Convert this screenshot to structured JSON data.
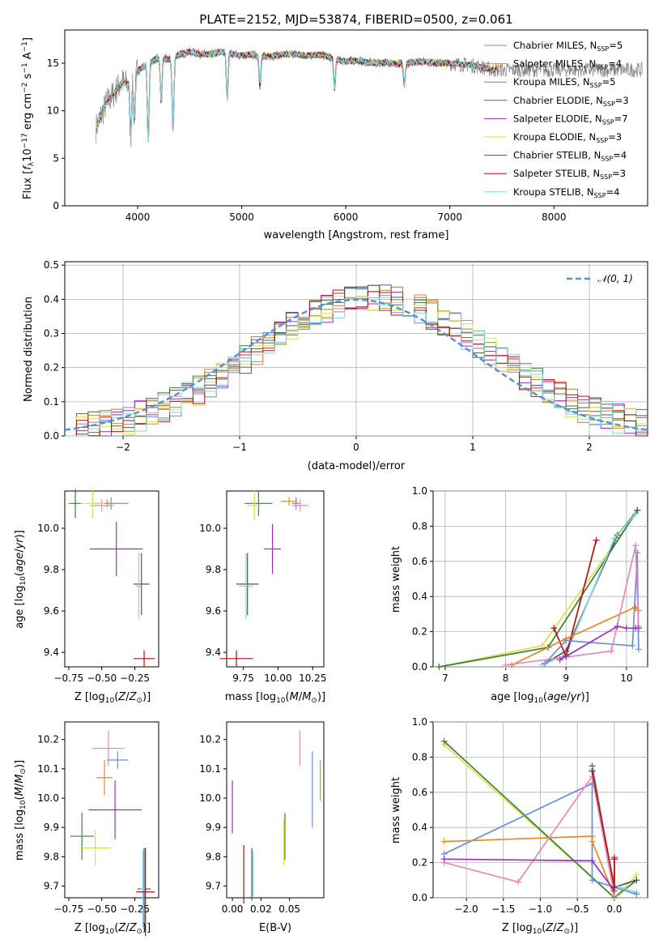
{
  "chart_data": [
    {
      "type": "line",
      "title": "PLATE=2152, MJD=53874, FIBERID=0500, z=0.061",
      "xlabel": "wavelength [Angstrom, rest frame]",
      "ylabel": "Flux [f_λ 10^-17 erg cm^-2 s^-1 A^-1]",
      "xlim": [
        3300,
        8900
      ],
      "ylim": [
        0,
        18.5
      ],
      "xticks": [
        4000,
        5000,
        6000,
        7000,
        8000
      ],
      "yticks": [
        0,
        5,
        10,
        15
      ],
      "legend_position": "top-right",
      "legend": [
        {
          "label": "Chabrier MILES, N",
          "sub": "SSP",
          "n": "=5",
          "color": "#6a8fd8"
        },
        {
          "label": "Salpeter MILES, N",
          "sub": "SSP",
          "n": "=4",
          "color": "#e08a2c"
        },
        {
          "label": "Kroupa MILES, N",
          "sub": "SSP",
          "n": "=5",
          "color": "#9a8a2a"
        },
        {
          "label": "Chabrier ELODIE, N",
          "sub": "SSP",
          "n": "=3",
          "color": "#3f7f3f"
        },
        {
          "label": "Salpeter ELODIE, N",
          "sub": "SSP",
          "n": "=7",
          "color": "#9a2fb5"
        },
        {
          "label": "Kroupa ELODIE, N",
          "sub": "SSP",
          "n": "=3",
          "color": "#d9e14a"
        },
        {
          "label": "Chabrier STELIB, N",
          "sub": "SSP",
          "n": "=4",
          "color": "#555555"
        },
        {
          "label": "Salpeter STELIB, N",
          "sub": "SSP",
          "n": "=3",
          "color": "#b01010"
        },
        {
          "label": "Kroupa STELIB, N",
          "sub": "SSP",
          "n": "=4",
          "color": "#7fd6e0"
        }
      ],
      "data_color": "#808080",
      "model_color": "#7fd6e0",
      "spectrum_x": [
        3600,
        3650,
        3700,
        3750,
        3800,
        3850,
        3900,
        3950,
        4000,
        4050,
        4100,
        4150,
        4200,
        4300,
        4400,
        4500,
        4600,
        4700,
        4800,
        4900,
        5000,
        5100,
        5200,
        5300,
        5400,
        5500,
        5600,
        5700,
        5800,
        5900,
        6000,
        6100,
        6200,
        6300,
        6400,
        6500,
        6600,
        6700,
        6800,
        6900,
        7000,
        7100,
        7200,
        7300,
        7400
      ],
      "spectrum_y": [
        8.2,
        9.5,
        10.8,
        11.5,
        12.3,
        13.0,
        12.8,
        13.6,
        14.2,
        14.6,
        15.0,
        15.3,
        15.5,
        15.4,
        15.9,
        16.2,
        16.0,
        15.9,
        16.2,
        16.0,
        15.8,
        15.9,
        15.7,
        15.8,
        15.9,
        16.0,
        15.8,
        15.9,
        15.8,
        15.4,
        15.2,
        15.3,
        15.1,
        15.0,
        15.1,
        14.9,
        15.0,
        15.2,
        15.1,
        15.0,
        15.0,
        14.9,
        14.8,
        14.6,
        14.3
      ]
    },
    {
      "type": "histogram",
      "xlabel": "(data-model)/error",
      "ylabel": "Normed distribution",
      "xlim": [
        -2.5,
        2.5
      ],
      "ylim": [
        0,
        0.51
      ],
      "xticks": [
        -2,
        -1,
        0,
        1,
        2
      ],
      "yticks": [
        0.0,
        0.1,
        0.2,
        0.3,
        0.4,
        0.5
      ],
      "grid": true,
      "legend_position": "top-right",
      "legend": [
        {
          "label": "𝒩(0, 1)",
          "color": "#5b8fd6",
          "style": "dashed"
        }
      ],
      "bin_width": 0.1
    },
    {
      "type": "errorbar",
      "xlabel": "Z [log10(Z/Z⊙)]",
      "ylabel": "age  [log10(age/yr)]",
      "xlim": [
        -0.78,
        -0.07
      ],
      "ylim": [
        9.33,
        10.18
      ],
      "xticks": [
        -0.75,
        -0.5,
        -0.25
      ],
      "yticks": [
        9.4,
        9.6,
        9.8,
        10.0
      ],
      "points": [
        {
          "color": "#6a8fd8",
          "x": -0.43,
          "y": 10.12,
          "xe": 0.13,
          "ye": 0.03
        },
        {
          "color": "#e08a2c",
          "x": -0.46,
          "y": 10.12,
          "xe": 0.05,
          "ye": 0.02
        },
        {
          "color": "#e68ab5",
          "x": -0.5,
          "y": 10.11,
          "xe": 0.09,
          "ye": 0.03
        },
        {
          "color": "#3f7f3f",
          "x": -0.7,
          "y": 10.12,
          "xe": 0.05,
          "ye": 0.07
        },
        {
          "color": "#d9e14a",
          "x": -0.57,
          "y": 10.12,
          "xe": 0.09,
          "ye": 0.07
        },
        {
          "color": "#9a2fb5",
          "x": -0.39,
          "y": 9.9,
          "xe": 0.2,
          "ye": 0.13
        },
        {
          "color": "#555555",
          "x": -0.2,
          "y": 9.73,
          "xe": 0.06,
          "ye": 0.15
        },
        {
          "color": "#7fd6e0",
          "x": -0.22,
          "y": 9.72,
          "xe": 0.02,
          "ye": 0.16
        },
        {
          "color": "#b01010",
          "x": -0.18,
          "y": 9.37,
          "xe": 0.08,
          "ye": 0.04
        }
      ]
    },
    {
      "type": "errorbar",
      "xlabel": "mass [log10(M/M⊙)]",
      "ylabel": "",
      "xlim": [
        9.63,
        10.33
      ],
      "ylim": [
        9.33,
        10.18
      ],
      "xticks": [
        9.75,
        10.0,
        10.25
      ],
      "yticks": [
        9.4,
        9.6,
        9.8,
        10.0
      ],
      "points": [
        {
          "color": "#6a8fd8",
          "x": 10.13,
          "y": 10.12,
          "xe": 0.03,
          "ye": 0.03
        },
        {
          "color": "#e08a2c",
          "x": 10.08,
          "y": 10.13,
          "xe": 0.06,
          "ye": 0.02
        },
        {
          "color": "#e68ab5",
          "x": 10.16,
          "y": 10.11,
          "xe": 0.06,
          "ye": 0.03
        },
        {
          "color": "#3f7f3f",
          "x": 9.86,
          "y": 10.12,
          "xe": 0.1,
          "ye": 0.06
        },
        {
          "color": "#d9e14a",
          "x": 9.83,
          "y": 10.11,
          "xe": 0.05,
          "ye": 0.07
        },
        {
          "color": "#9a2fb5",
          "x": 9.96,
          "y": 9.9,
          "xe": 0.06,
          "ye": 0.12
        },
        {
          "color": "#555555",
          "x": 9.78,
          "y": 9.73,
          "xe": 0.08,
          "ye": 0.15
        },
        {
          "color": "#7fd6e0",
          "x": 9.77,
          "y": 9.72,
          "xe": 0.05,
          "ye": 0.16
        },
        {
          "color": "#b01010",
          "x": 9.7,
          "y": 9.37,
          "xe": 0.12,
          "ye": 0.04
        }
      ]
    },
    {
      "type": "line",
      "xlabel": "age  [log10(age/yr)]",
      "ylabel": "mass weight",
      "xlim": [
        6.8,
        10.35
      ],
      "ylim": [
        0,
        1.0
      ],
      "xticks": [
        7,
        8,
        9,
        10
      ],
      "yticks": [
        0.0,
        0.2,
        0.4,
        0.6,
        0.8,
        1.0
      ],
      "grid": true,
      "series": [
        {
          "color": "#d9e14a",
          "x": [
            6.9,
            8.6,
            10.15
          ],
          "y": [
            0.0,
            0.12,
            0.87
          ]
        },
        {
          "color": "#3f7f3f",
          "x": [
            6.9,
            8.7,
            10.18
          ],
          "y": [
            0.0,
            0.11,
            0.89
          ]
        },
        {
          "color": "#555555",
          "x": [
            8.65,
            9.0,
            9.85,
            10.18
          ],
          "y": [
            0.02,
            0.09,
            0.75,
            0.89
          ]
        },
        {
          "color": "#7fd6e0",
          "x": [
            8.6,
            9.0,
            9.8,
            10.15
          ],
          "y": [
            0.01,
            0.07,
            0.73,
            0.87
          ]
        },
        {
          "color": "#b01010",
          "x": [
            8.8,
            9.0,
            9.5
          ],
          "y": [
            0.22,
            0.06,
            0.72
          ]
        },
        {
          "color": "#6a8fd8",
          "x": [
            8.65,
            9.0,
            10.1,
            10.18,
            10.2
          ],
          "y": [
            0.02,
            0.15,
            0.12,
            0.65,
            0.1
          ]
        },
        {
          "color": "#e08a2c",
          "x": [
            8.1,
            9.0,
            10.15,
            10.2
          ],
          "y": [
            0.01,
            0.16,
            0.34,
            0.32
          ]
        },
        {
          "color": "#e68ab5",
          "x": [
            8.0,
            9.75,
            10.15,
            10.2
          ],
          "y": [
            0.01,
            0.09,
            0.69,
            0.23
          ]
        },
        {
          "color": "#9a2fb5",
          "x": [
            8.9,
            9.0,
            9.85,
            10.0,
            10.15,
            10.2
          ],
          "y": [
            0.04,
            0.06,
            0.23,
            0.22,
            0.22,
            0.22
          ]
        }
      ]
    },
    {
      "type": "errorbar",
      "xlabel": "Z [log10(Z/Z⊙)]",
      "ylabel": "mass [log10(M/M⊙)]",
      "xlim": [
        -0.78,
        -0.07
      ],
      "ylim": [
        9.66,
        10.26
      ],
      "xticks": [
        -0.75,
        -0.5,
        -0.25
      ],
      "yticks": [
        9.7,
        9.8,
        9.9,
        10.0,
        10.1,
        10.2
      ],
      "points": [
        {
          "color": "#e68ab5",
          "x": -0.45,
          "y": 10.17,
          "xe": 0.12,
          "ye": 0.06
        },
        {
          "color": "#6a8fd8",
          "x": -0.38,
          "y": 10.13,
          "xe": 0.08,
          "ye": 0.03
        },
        {
          "color": "#e08a2c",
          "x": -0.48,
          "y": 10.07,
          "xe": 0.06,
          "ye": 0.06
        },
        {
          "color": "#9a2fb5",
          "x": -0.4,
          "y": 9.96,
          "xe": 0.2,
          "ye": 0.1
        },
        {
          "color": "#3f7f3f",
          "x": -0.65,
          "y": 9.87,
          "xe": 0.09,
          "ye": 0.08
        },
        {
          "color": "#d9e14a",
          "x": -0.55,
          "y": 9.83,
          "xe": 0.12,
          "ye": 0.06
        },
        {
          "color": "#555555",
          "x": -0.18,
          "y": 9.69,
          "xe": 0.05,
          "ye": 0.14
        },
        {
          "color": "#7fd6e0",
          "x": -0.19,
          "y": 9.69,
          "xe": 0.02,
          "ye": 0.13
        },
        {
          "color": "#b01010",
          "x": -0.17,
          "y": 9.68,
          "xe": 0.07,
          "ye": 0.15
        }
      ]
    },
    {
      "type": "errorbar",
      "xlabel": "E(B-V)",
      "ylabel": "",
      "xlim": [
        -0.005,
        0.08
      ],
      "ylim": [
        9.66,
        10.26
      ],
      "xticks": [
        0.0,
        0.025,
        0.05
      ],
      "xticklabels": [
        "0.00",
        "0.02",
        "0.05"
      ],
      "yticks": [
        9.7,
        9.8,
        9.9,
        10.0,
        10.1,
        10.2
      ],
      "points": [
        {
          "color": "#9a2fb5",
          "x": 0.0,
          "y": 9.97,
          "xe": 0,
          "ye": 0.09
        },
        {
          "color": "#b01010",
          "x": 0.01,
          "y": 9.74,
          "xe": 0,
          "ye": 0.1
        },
        {
          "color": "#555555",
          "x": 0.017,
          "y": 9.74,
          "xe": 0,
          "ye": 0.09
        },
        {
          "color": "#7fd6e0",
          "x": 0.018,
          "y": 9.74,
          "xe": 0,
          "ye": 0.08
        },
        {
          "color": "#3f7f3f",
          "x": 0.046,
          "y": 9.87,
          "xe": 0,
          "ye": 0.08
        },
        {
          "color": "#d9e14a",
          "x": 0.045,
          "y": 9.85,
          "xe": 0,
          "ye": 0.08
        },
        {
          "color": "#e68ab5",
          "x": 0.059,
          "y": 10.17,
          "xe": 0,
          "ye": 0.06
        },
        {
          "color": "#6a8fd8",
          "x": 0.07,
          "y": 10.03,
          "xe": 0,
          "ye": 0.13
        },
        {
          "color": "#e08a2c",
          "x": 0.077,
          "y": 10.06,
          "xe": 0,
          "ye": 0.07
        }
      ]
    },
    {
      "type": "line",
      "xlabel": "Z [log10(Z/Z⊙)]",
      "ylabel": "mass weight",
      "xlim": [
        -2.45,
        0.45
      ],
      "ylim": [
        0,
        1.0
      ],
      "xticks": [
        -2.0,
        -1.5,
        -1.0,
        -0.5,
        0.0
      ],
      "xticklabels": [
        "−2.0",
        "−1.5",
        "−1.0",
        "−0.5",
        "0.0"
      ],
      "yticks": [
        0.0,
        0.2,
        0.4,
        0.6,
        0.8,
        1.0
      ],
      "grid": true,
      "series": [
        {
          "color": "#d9e14a",
          "x": [
            -2.3,
            0.0,
            0.3
          ],
          "y": [
            0.87,
            0.0,
            0.13
          ]
        },
        {
          "color": "#3f7f3f",
          "x": [
            -2.3,
            0.0,
            0.3
          ],
          "y": [
            0.89,
            0.0,
            0.1
          ]
        },
        {
          "color": "#555555",
          "x": [
            -0.3,
            0.0,
            0.3
          ],
          "y": [
            0.75,
            0.06,
            0.1
          ]
        },
        {
          "color": "#7fd6e0",
          "x": [
            -0.3,
            0.0,
            0.3
          ],
          "y": [
            0.73,
            0.07,
            0.03
          ]
        },
        {
          "color": "#6a8fd8",
          "x": [
            -2.3,
            -0.3,
            -0.3,
            0.3
          ],
          "y": [
            0.25,
            0.65,
            0.1,
            0.02
          ]
        },
        {
          "color": "#e08a2c",
          "x": [
            -2.3,
            -0.3,
            -0.3,
            0.0
          ],
          "y": [
            0.32,
            0.35,
            0.32,
            0.01
          ]
        },
        {
          "color": "#e68ab5",
          "x": [
            -2.3,
            -1.3,
            -0.3,
            0.0
          ],
          "y": [
            0.2,
            0.09,
            0.69,
            0.01
          ]
        },
        {
          "color": "#9a2fb5",
          "x": [
            -2.3,
            -0.3,
            0.0,
            0.0
          ],
          "y": [
            0.22,
            0.21,
            0.04,
            0.23
          ]
        },
        {
          "color": "#b01010",
          "x": [
            -0.3,
            0.0,
            0.0
          ],
          "y": [
            0.72,
            0.06,
            0.22
          ]
        }
      ]
    }
  ]
}
